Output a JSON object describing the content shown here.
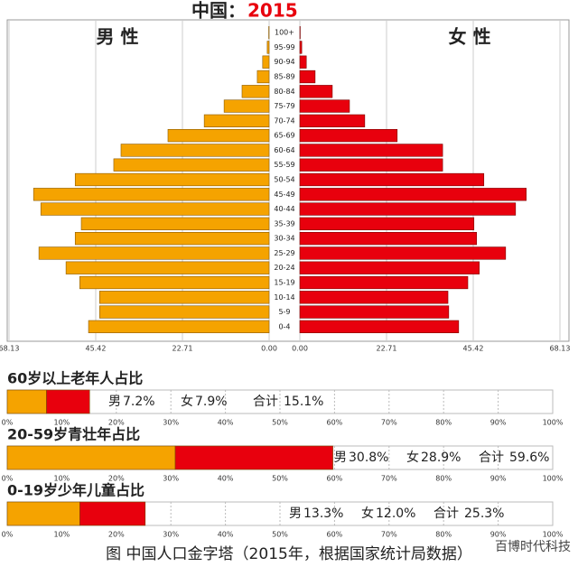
{
  "chart_data": [
    {
      "type": "pyramid",
      "title": "中国：",
      "subtitle": "2015",
      "categories": [
        "100+",
        "95-99",
        "90-94",
        "85-89",
        "80-84",
        "75-79",
        "70-74",
        "65-69",
        "60-64",
        "55-59",
        "50-54",
        "45-49",
        "40-44",
        "35-39",
        "30-34",
        "25-29",
        "20-24",
        "15-19",
        "10-14",
        "5-9",
        "0-4"
      ],
      "series": [
        {
          "name": "男 性",
          "color": "#f5a300",
          "values": [
            0.1,
            0.5,
            1.7,
            3.1,
            7.1,
            11.8,
            17.0,
            26.5,
            38.8,
            40.7,
            50.8,
            61.7,
            59.8,
            49.2,
            50.8,
            60.3,
            53.2,
            49.6,
            44.4,
            44.4,
            47.3
          ]
        },
        {
          "name": "女 性",
          "color": "#e8000d",
          "values": [
            0.1,
            0.5,
            1.7,
            4.0,
            8.5,
            13.0,
            17.0,
            25.5,
            37.4,
            37.4,
            48.2,
            59.3,
            56.5,
            45.6,
            46.3,
            53.9,
            47.0,
            44.0,
            38.8,
            39.0,
            41.6
          ]
        }
      ],
      "xlim": [
        0,
        68.13
      ],
      "xticks": [
        {
          "value": 0,
          "label": "0.00"
        },
        22.71,
        45.42,
        68.13
      ],
      "grid": true
    },
    {
      "type": "stacked_bar",
      "title": "60岁以上老年人占比",
      "series": [
        {
          "name": "男",
          "color": "#f5a300",
          "values": [
            7.2
          ],
          "value_labels": [
            "7.2%"
          ]
        },
        {
          "name": "女",
          "color": "#e8000d",
          "values": [
            7.9
          ],
          "value_labels": [
            "7.9%"
          ]
        }
      ],
      "total_name": "合计",
      "total": 15.1,
      "total_label": "15.1%",
      "xlim": [
        0,
        100
      ],
      "xticks": [
        {
          "value": 0,
          "label": "0%"
        },
        {
          "value": 10,
          "label": "10%"
        },
        {
          "value": 20,
          "label": "20%"
        },
        {
          "value": 30,
          "label": "30%"
        },
        {
          "value": 40,
          "label": "40%"
        },
        {
          "value": 50,
          "label": "50%"
        },
        {
          "value": 60,
          "label": "60%"
        },
        {
          "value": 70,
          "label": "70%"
        },
        {
          "value": 80,
          "label": "80%"
        },
        {
          "value": 90,
          "label": "90%"
        },
        {
          "value": 100,
          "label": "100%"
        }
      ]
    },
    {
      "type": "stacked_bar",
      "title": "20-59岁青壮年占比",
      "series": [
        {
          "name": "男",
          "color": "#f5a300",
          "values": [
            30.8
          ],
          "value_labels": [
            "30.8%"
          ]
        },
        {
          "name": "女",
          "color": "#e8000d",
          "values": [
            28.9
          ],
          "value_labels": [
            "28.9%"
          ]
        }
      ],
      "total_name": "合计",
      "total": 59.6,
      "total_label": "59.6%",
      "xlim": [
        0,
        100
      ],
      "xticks": [
        {
          "value": 0,
          "label": "0%"
        },
        {
          "value": 10,
          "label": "10%"
        },
        {
          "value": 20,
          "label": "20%"
        },
        {
          "value": 30,
          "label": "30%"
        },
        {
          "value": 40,
          "label": "40%"
        },
        {
          "value": 50,
          "label": "50%"
        },
        {
          "value": 60,
          "label": "60%"
        },
        {
          "value": 70,
          "label": "70%"
        },
        {
          "value": 80,
          "label": "80%"
        },
        {
          "value": 90,
          "label": "90%"
        },
        {
          "value": 100,
          "label": "100%"
        }
      ]
    },
    {
      "type": "stacked_bar",
      "title": "0-19岁少年儿童占比",
      "series": [
        {
          "name": "男",
          "color": "#f5a300",
          "values": [
            13.3
          ],
          "value_labels": [
            "13.3%"
          ]
        },
        {
          "name": "女",
          "color": "#e8000d",
          "values": [
            12.0
          ],
          "value_labels": [
            "12.0%"
          ]
        }
      ],
      "total_name": "合计",
      "total": 25.3,
      "total_label": "25.3%",
      "xlim": [
        0,
        100
      ],
      "xticks": [
        {
          "value": 0,
          "label": "0%"
        },
        {
          "value": 10,
          "label": "10%"
        },
        {
          "value": 20,
          "label": "20%"
        },
        {
          "value": 30,
          "label": "30%"
        },
        {
          "value": 40,
          "label": "40%"
        },
        {
          "value": 50,
          "label": "50%"
        },
        {
          "value": 60,
          "label": "60%"
        },
        {
          "value": 70,
          "label": "70%"
        },
        {
          "value": 80,
          "label": "80%"
        },
        {
          "value": 90,
          "label": "90%"
        },
        {
          "value": 100,
          "label": "100%"
        }
      ]
    }
  ],
  "caption": "图  中国人口金字塔（2015年，根据国家统计局数据）",
  "watermark": "百博时代科技"
}
